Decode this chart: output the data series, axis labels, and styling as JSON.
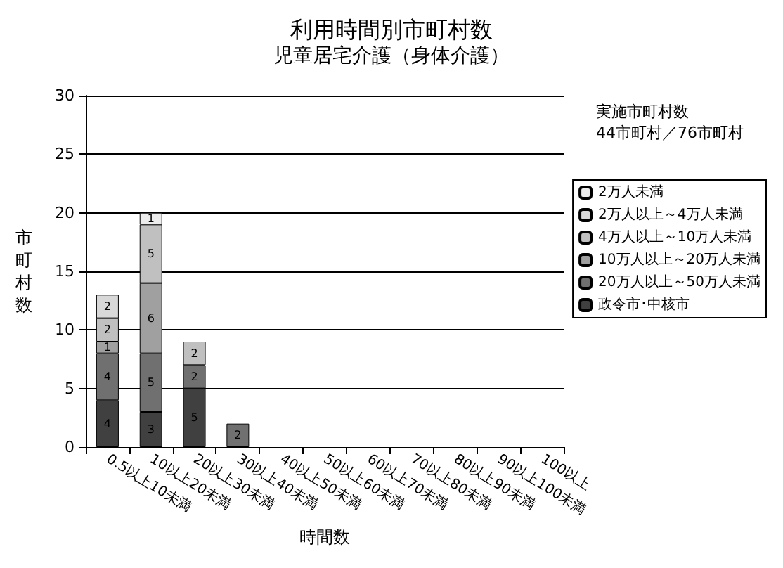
{
  "chart_data": {
    "type": "bar",
    "title": "利用時間別市町村数",
    "subtitle": "児童居宅介護（身体介護）",
    "xlabel": "時間数",
    "ylabel": "市町村数",
    "annotations": [
      "実施市町村数\n44市町村／76市町村"
    ],
    "categories": [
      "0.5以上10未満",
      "10以上20未満",
      "20以上30未満",
      "30以上40未満",
      "40以上50未満",
      "50以上60未満",
      "60以上70未満",
      "70以上80未満",
      "80以上90未満",
      "90以上100未満",
      "100以上"
    ],
    "stacked": true,
    "data_labels": true,
    "grid": "y",
    "legend": "right",
    "ylim": [
      0,
      30
    ],
    "yticks": [
      0,
      5,
      10,
      15,
      20,
      25,
      30
    ],
    "series": [
      {
        "name": "政令市･中核市",
        "color": "#404040",
        "values": [
          4,
          3,
          5,
          null,
          null,
          null,
          null,
          null,
          null,
          null,
          null
        ]
      },
      {
        "name": "20万人以上～50万人未満",
        "color": "#707070",
        "values": [
          4,
          5,
          2,
          2,
          null,
          null,
          null,
          null,
          null,
          null,
          null
        ]
      },
      {
        "name": "10万人以上～20万人未満",
        "color": "#a0a0a0",
        "values": [
          1,
          6,
          null,
          null,
          null,
          null,
          null,
          null,
          null,
          null,
          null
        ]
      },
      {
        "name": "4万人以上～10万人未満",
        "color": "#c0c0c0",
        "values": [
          2,
          5,
          2,
          null,
          null,
          null,
          null,
          null,
          null,
          null,
          null
        ]
      },
      {
        "name": "2万人以上～4万人未満",
        "color": "#d8d8d8",
        "values": [
          2,
          null,
          null,
          null,
          null,
          null,
          null,
          null,
          null,
          null,
          null
        ]
      },
      {
        "name": "2万人未満",
        "color": "#ececec",
        "values": [
          null,
          1,
          null,
          null,
          null,
          null,
          null,
          null,
          null,
          null,
          null
        ]
      }
    ]
  }
}
